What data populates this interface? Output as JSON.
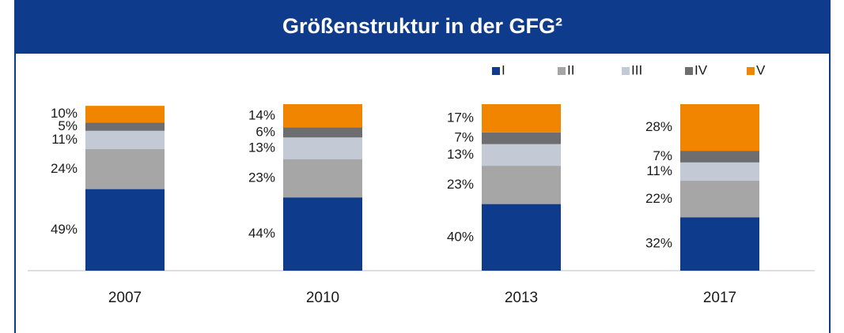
{
  "chart_data": {
    "type": "bar",
    "stacked": true,
    "title": "Größenstruktur in der GFG²",
    "categories": [
      "2007",
      "2010",
      "2013",
      "2017"
    ],
    "series": [
      {
        "name": "I",
        "color": "#0e3b8c",
        "values": [
          49,
          44,
          40,
          32
        ]
      },
      {
        "name": "II",
        "color": "#a6a6a6",
        "values": [
          24,
          23,
          23,
          22
        ]
      },
      {
        "name": "III",
        "color": "#c3cad5",
        "values": [
          11,
          13,
          13,
          11
        ]
      },
      {
        "name": "IV",
        "color": "#6e6e70",
        "values": [
          5,
          6,
          7,
          7
        ]
      },
      {
        "name": "V",
        "color": "#f28500",
        "values": [
          10,
          14,
          17,
          28
        ]
      }
    ],
    "value_labels": [
      [
        "49%",
        "44%",
        "40%",
        "32%"
      ],
      [
        "24%",
        "23%",
        "23%",
        "22%"
      ],
      [
        "11%",
        "13%",
        "13%",
        "11%"
      ],
      [
        "5%",
        "6%",
        "7%",
        "7%"
      ],
      [
        "10%",
        "14%",
        "17%",
        "28%"
      ]
    ],
    "ylim": [
      0,
      100
    ],
    "legend": "top-right"
  }
}
